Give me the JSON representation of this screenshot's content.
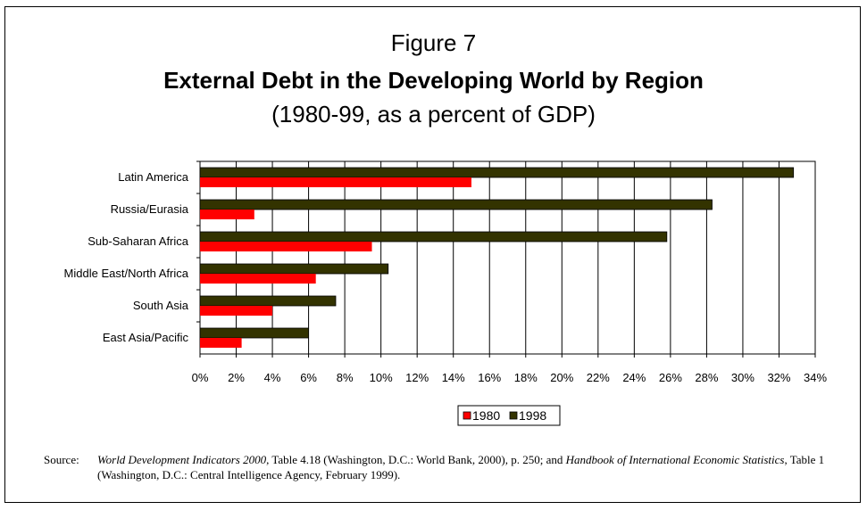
{
  "figure_label": "Figure 7",
  "chart_data": {
    "type": "bar",
    "orientation": "horizontal",
    "title": "External Debt in the Developing World by Region",
    "subtitle": "(1980-99, as a percent of GDP)",
    "categories": [
      "Latin America",
      "Russia/Eurasia",
      "Sub-Saharan Africa",
      "Middle East/North Africa",
      "South Asia",
      "East Asia/Pacific"
    ],
    "series": [
      {
        "name": "1980",
        "color": "#ff0000",
        "values": [
          15.0,
          3.0,
          9.5,
          6.4,
          4.0,
          2.3
        ]
      },
      {
        "name": "1998",
        "color": "#333300",
        "values": [
          32.8,
          28.3,
          25.8,
          10.4,
          7.5,
          6.0
        ]
      }
    ],
    "xlim": [
      0,
      34
    ],
    "xticks": [
      "0%",
      "2%",
      "4%",
      "6%",
      "8%",
      "10%",
      "12%",
      "14%",
      "16%",
      "18%",
      "20%",
      "22%",
      "24%",
      "26%",
      "28%",
      "30%",
      "32%",
      "34%"
    ],
    "grid": "vertical",
    "legend_position": "bottom-center"
  },
  "source": {
    "label": "Source:",
    "italic_1": "World Development Indicators 2000",
    "text_1": ", Table 4.18 (Washington, D.C.: World Bank, 2000), p. 250; and ",
    "italic_2": "Handbook of International Economic Statistics",
    "text_2": ", Table 1 (Washington, D.C.: Central Intelligence Agency, February 1999)."
  }
}
